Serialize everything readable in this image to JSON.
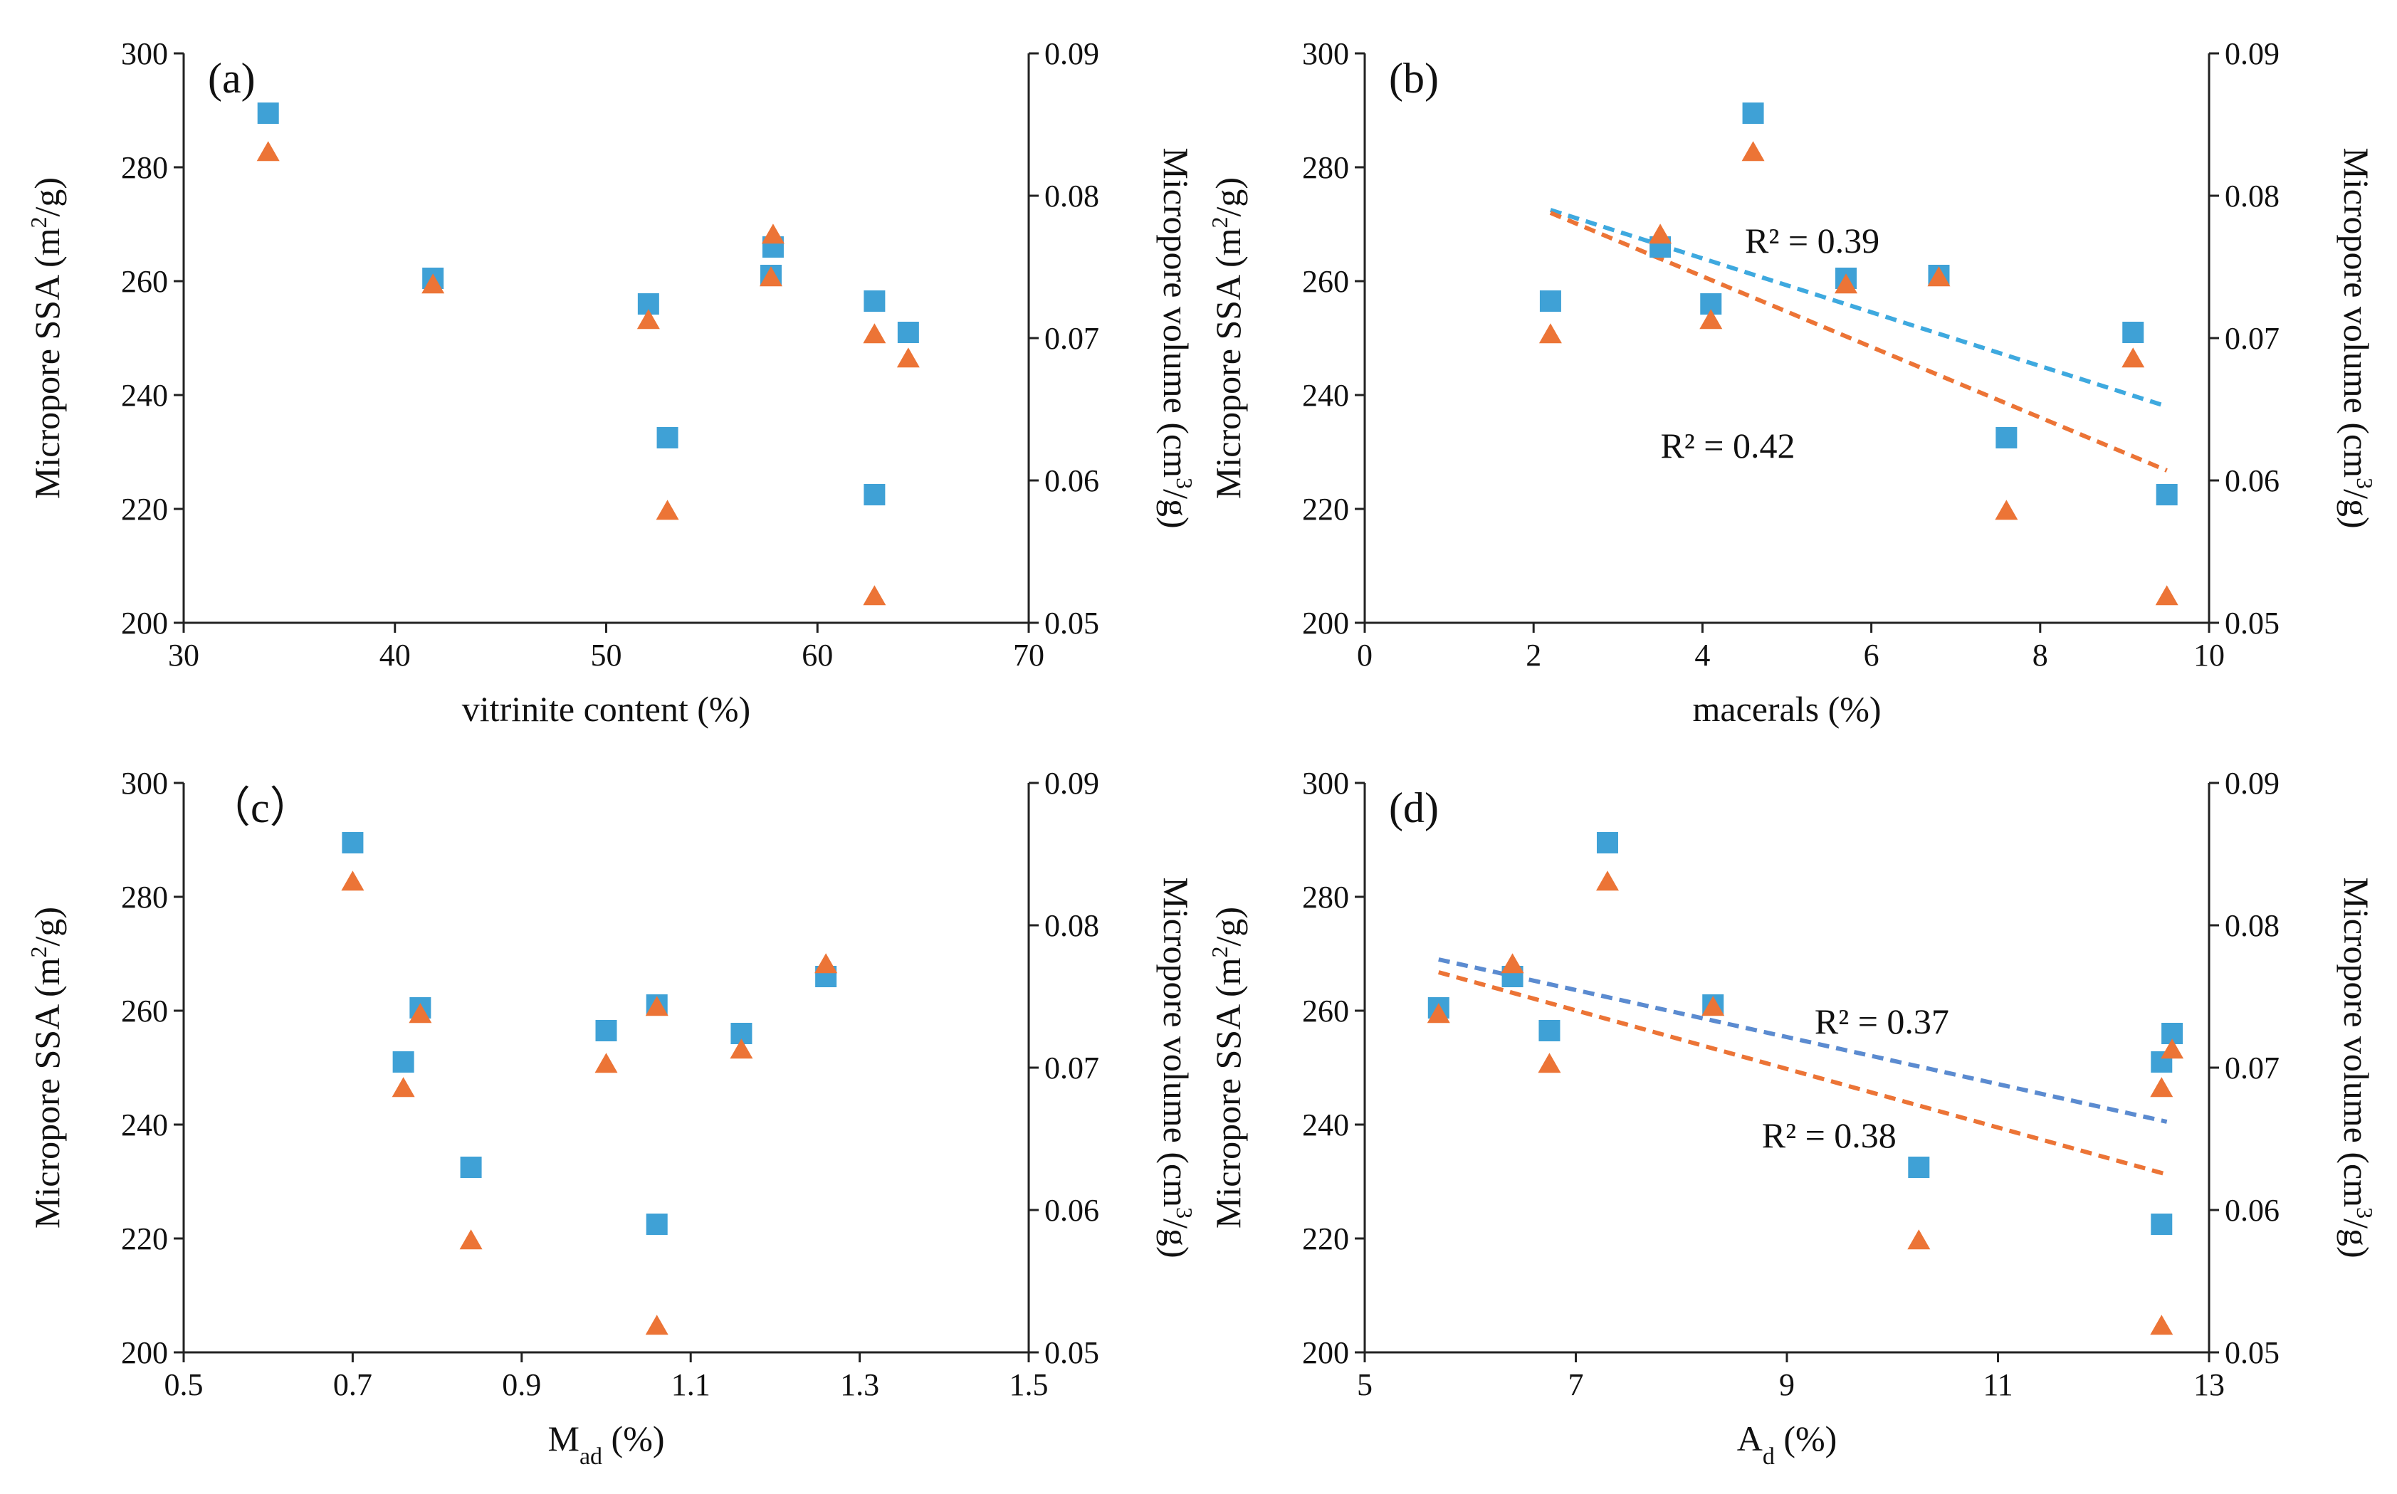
{
  "colors": {
    "ssa": "#3fa1d6",
    "volume": "#ec7436",
    "trend_ssa_b": "#3ea9df",
    "trend_ssa_d": "#5b8bd0",
    "trend_volume": "#ec7436",
    "axis": "#222222"
  },
  "chart_data": [
    {
      "type": "scatter",
      "panel_label": "(a)",
      "xlabel": "vitrinite content (%)",
      "ylabel": "Micropore SSA (m²/g)",
      "y2label": "Micropore volume (cm³/g)",
      "xlim": [
        30,
        70
      ],
      "ylim": [
        200,
        300
      ],
      "y2lim": [
        0.05,
        0.09
      ],
      "x_ticks": [
        "30",
        "40",
        "50",
        "60",
        "70"
      ],
      "y_ticks": [
        "200",
        "220",
        "240",
        "260",
        "280",
        "300"
      ],
      "y2_ticks": [
        "0.05",
        "0.06",
        "0.07",
        "0.08",
        "0.09"
      ],
      "series": [
        {
          "marker": "square",
          "axis": "left",
          "points": [
            [
              34,
              289.5
            ],
            [
              41.8,
              260.5
            ],
            [
              52,
              256
            ],
            [
              52.9,
              232.5
            ],
            [
              57.8,
              261
            ],
            [
              57.9,
              266
            ],
            [
              62.7,
              256.5
            ],
            [
              62.7,
              222.5
            ],
            [
              64.3,
              251
            ]
          ]
        },
        {
          "marker": "triangle",
          "axis": "right",
          "points": [
            [
              34,
              0.083
            ],
            [
              41.8,
              0.0737
            ],
            [
              52,
              0.0712
            ],
            [
              52.9,
              0.0578
            ],
            [
              57.8,
              0.0742
            ],
            [
              57.9,
              0.0772
            ],
            [
              62.7,
              0.0702
            ],
            [
              62.7,
              0.0518
            ],
            [
              64.3,
              0.0685
            ]
          ]
        }
      ],
      "trendlines": []
    },
    {
      "type": "scatter",
      "panel_label": "(b)",
      "xlabel": "macerals (%)",
      "ylabel": "Micropore SSA (m²/g)",
      "y2label": "Micropore volume (cm³/g)",
      "xlim": [
        0,
        10
      ],
      "ylim": [
        200,
        300
      ],
      "y2lim": [
        0.05,
        0.09
      ],
      "x_ticks": [
        "0",
        "2",
        "4",
        "6",
        "8",
        "10"
      ],
      "y_ticks": [
        "200",
        "220",
        "240",
        "260",
        "280",
        "300"
      ],
      "y2_ticks": [
        "0.05",
        "0.06",
        "0.07",
        "0.08",
        "0.09"
      ],
      "series": [
        {
          "marker": "square",
          "axis": "left",
          "points": [
            [
              2.2,
              256.5
            ],
            [
              3.5,
              266
            ],
            [
              4.1,
              256
            ],
            [
              4.6,
              289.5
            ],
            [
              5.7,
              260.5
            ],
            [
              6.8,
              261
            ],
            [
              7.6,
              232.5
            ],
            [
              9.1,
              251
            ],
            [
              9.5,
              222.5
            ]
          ]
        },
        {
          "marker": "triangle",
          "axis": "right",
          "points": [
            [
              2.2,
              0.0702
            ],
            [
              3.5,
              0.0772
            ],
            [
              4.1,
              0.0712
            ],
            [
              4.6,
              0.083
            ],
            [
              5.7,
              0.0737
            ],
            [
              6.8,
              0.0742
            ],
            [
              7.6,
              0.0578
            ],
            [
              9.1,
              0.0685
            ],
            [
              9.5,
              0.0518
            ]
          ]
        }
      ],
      "trendlines": [
        {
          "series": "ssa",
          "axis": "left",
          "x": [
            2.2,
            9.5
          ],
          "y": [
            272.5,
            238
          ],
          "label": "R² = 0.39",
          "label_at": [
            5.3,
            267
          ]
        },
        {
          "series": "volume",
          "axis": "right",
          "x": [
            2.2,
            9.5
          ],
          "y": [
            0.0788,
            0.0607
          ],
          "label": "R² = 0.42",
          "label_at": [
            4.3,
            231
          ]
        }
      ]
    },
    {
      "type": "scatter",
      "panel_label": "（c）",
      "xlabel": "Mad (%)",
      "ylabel": "Micropore SSA (m²/g)",
      "y2label": "Micropore volume (cm³/g)",
      "xlim": [
        0.5,
        1.5
      ],
      "ylim": [
        200,
        300
      ],
      "y2lim": [
        0.05,
        0.09
      ],
      "x_ticks": [
        "0.5",
        "0.7",
        "0.9",
        "1.1",
        "1.3",
        "1.5"
      ],
      "y_ticks": [
        "200",
        "220",
        "240",
        "260",
        "280",
        "300"
      ],
      "y2_ticks": [
        "0.05",
        "0.06",
        "0.07",
        "0.08",
        "0.09"
      ],
      "series": [
        {
          "marker": "square",
          "axis": "left",
          "points": [
            [
              0.7,
              289.5
            ],
            [
              0.76,
              251
            ],
            [
              0.78,
              260.5
            ],
            [
              0.84,
              232.5
            ],
            [
              1.0,
              256.5
            ],
            [
              1.06,
              261
            ],
            [
              1.06,
              222.5
            ],
            [
              1.16,
              256
            ],
            [
              1.26,
              266
            ]
          ]
        },
        {
          "marker": "triangle",
          "axis": "right",
          "points": [
            [
              0.7,
              0.083
            ],
            [
              0.76,
              0.0685
            ],
            [
              0.78,
              0.0737
            ],
            [
              0.84,
              0.0578
            ],
            [
              1.0,
              0.0702
            ],
            [
              1.06,
              0.0742
            ],
            [
              1.06,
              0.0518
            ],
            [
              1.16,
              0.0712
            ],
            [
              1.26,
              0.0772
            ]
          ]
        }
      ],
      "trendlines": []
    },
    {
      "type": "scatter",
      "panel_label": "(d)",
      "xlabel": "Ad (%)",
      "ylabel": "Micropore SSA (m²/g)",
      "y2label": "Micropore volume (cm³/g)",
      "xlim": [
        5,
        13
      ],
      "ylim": [
        200,
        300
      ],
      "y2lim": [
        0.05,
        0.09
      ],
      "x_ticks": [
        "5",
        "7",
        "9",
        "11",
        "13"
      ],
      "y_ticks": [
        "200",
        "220",
        "240",
        "260",
        "280",
        "300"
      ],
      "y2_ticks": [
        "0.05",
        "0.06",
        "0.07",
        "0.08",
        "0.09"
      ],
      "series": [
        {
          "marker": "square",
          "axis": "left",
          "points": [
            [
              5.7,
              260.5
            ],
            [
              6.4,
              266
            ],
            [
              6.75,
              256.5
            ],
            [
              7.3,
              289.5
            ],
            [
              8.3,
              261
            ],
            [
              10.25,
              232.5
            ],
            [
              12.55,
              222.5
            ],
            [
              12.55,
              251
            ],
            [
              12.65,
              256
            ]
          ]
        },
        {
          "marker": "triangle",
          "axis": "right",
          "points": [
            [
              5.7,
              0.0737
            ],
            [
              6.4,
              0.0772
            ],
            [
              6.75,
              0.0702
            ],
            [
              7.3,
              0.083
            ],
            [
              8.3,
              0.0742
            ],
            [
              10.25,
              0.0578
            ],
            [
              12.55,
              0.0518
            ],
            [
              12.55,
              0.0685
            ],
            [
              12.65,
              0.0712
            ]
          ]
        }
      ],
      "trendlines": [
        {
          "series": "ssa",
          "axis": "left",
          "x": [
            5.7,
            12.6
          ],
          "y": [
            269,
            240.5
          ],
          "label": "R² = 0.37",
          "label_at": [
            9.9,
            258
          ]
        },
        {
          "series": "volume",
          "axis": "right",
          "x": [
            5.7,
            12.6
          ],
          "y": [
            0.0767,
            0.0625
          ],
          "label": "R² = 0.38",
          "label_at": [
            9.4,
            238
          ]
        }
      ]
    }
  ]
}
